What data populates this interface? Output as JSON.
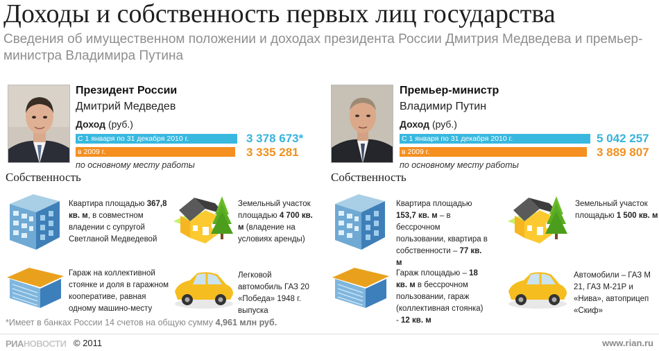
{
  "header": {
    "title": "Доходы и собственность первых лиц государства",
    "subtitle": "Сведения об имущественном положении и доходах президента России Дмитрия Медведева и премьер-министра Владимира Путина"
  },
  "colors": {
    "bar_2010": "#38b8df",
    "bar_2009": "#f58f1f"
  },
  "persons": [
    {
      "role": "Президент России",
      "name": "Дмитрий Медведев",
      "income_label": "Доход",
      "income_unit": "(руб.)",
      "period_2010": "С 1 января по 31 декабря 2010 г.",
      "period_2009": "в 2009 г.",
      "income_2010_text": "3 378 673*",
      "income_2009_text": "3 335 281",
      "note": "по основному месту работы",
      "property_heading": "Собственность",
      "property": [
        {
          "icon": "apartment-building-icon",
          "text": [
            "Квартира площадью ",
            "367,8 кв. м",
            ", в совместном владении с супругой Светланой Медведевой"
          ]
        },
        {
          "icon": "house-land-icon",
          "text": [
            "Земельный участок площадью ",
            "4 700 кв. м",
            " (владение на условиях аренды)"
          ]
        },
        {
          "icon": "garage-icon",
          "text": [
            "Гараж на коллективной стоянке и доля в гаражном кооперативе, равная одному машино-месту"
          ]
        },
        {
          "icon": "car-icon",
          "text": [
            "Легковой автомобиль ГАЗ 20 «Победа» 1948 г. выпуска"
          ]
        }
      ]
    },
    {
      "role": "Премьер-министр",
      "name": "Владимир Путин",
      "income_label": "Доход",
      "income_unit": "(руб.)",
      "period_2010": "С 1 января по 31 декабря 2010 г.",
      "period_2009": "в 2009 г.",
      "income_2010_text": "5 042 257",
      "income_2009_text": "3 889 807",
      "note": "по основному месту работы",
      "property_heading": "Собственность",
      "property": [
        {
          "icon": "apartment-building-icon",
          "text": [
            "Квартира площадью ",
            "153,7 кв. м",
            " – в бессрочном пользовании, квартира в собственности – ",
            "77 кв. м"
          ]
        },
        {
          "icon": "house-land-icon",
          "text": [
            "Земельный участок площадью ",
            "1 500 кв. м"
          ]
        },
        {
          "icon": "garage-icon",
          "text": [
            "Гараж площадью – ",
            "18 кв. м",
            " в бессрочном пользовании, гараж (коллективная стоянка)  - ",
            "12 кв. м"
          ]
        },
        {
          "icon": "car-icon",
          "text": [
            "Автомобили – ГАЗ М 21, ГАЗ М-21Р и «Нива», автоприцеп «Скиф»"
          ]
        }
      ]
    }
  ],
  "footnote": {
    "text": "*Имеет в банках России 14 счетов на общую сумму ",
    "amount": "4,961 млн руб."
  },
  "footer": {
    "logo_ria": "РИА",
    "logo_novosti": "НОВОСТИ",
    "copyright": "© 2011",
    "website": "www.rian.ru"
  },
  "chart_data": [
    {
      "type": "bar",
      "categories": [
        "С 1 января по 31 декабря 2010 г.",
        "в 2009 г."
      ],
      "values": [
        3378673,
        3335281
      ],
      "ylabel": "Доход (руб.)"
    },
    {
      "type": "bar",
      "categories": [
        "С 1 января по 31 декабря 2010 г.",
        "в 2009 г."
      ],
      "values": [
        5042257,
        3889807
      ],
      "ylabel": "Доход (руб.)"
    }
  ]
}
